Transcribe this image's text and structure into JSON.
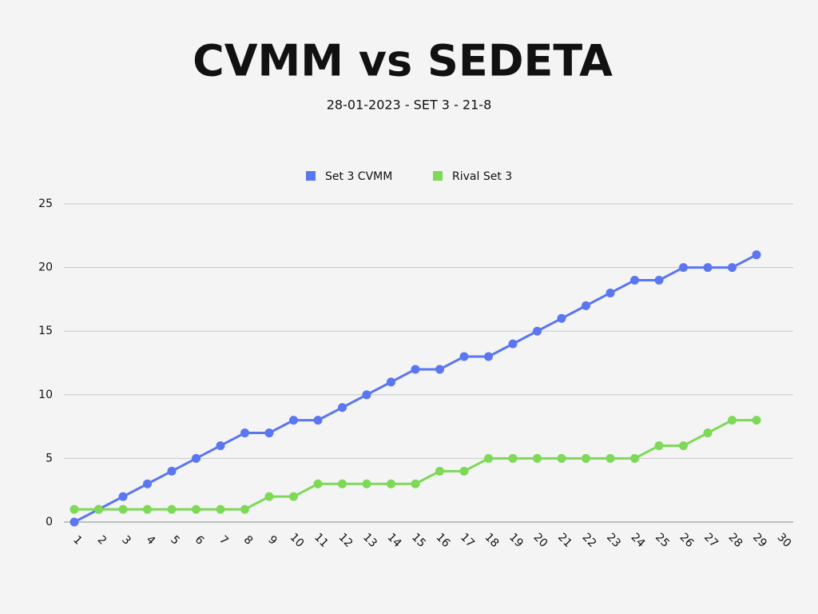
{
  "chart_data": {
    "type": "line",
    "title": "CVMM vs SEDETA",
    "subtitle": "28-01-2023 - SET 3 - 21-8",
    "categories": [
      "1",
      "2",
      "3",
      "4",
      "5",
      "6",
      "7",
      "8",
      "9",
      "10",
      "11",
      "12",
      "13",
      "14",
      "15",
      "16",
      "17",
      "18",
      "19",
      "20",
      "21",
      "22",
      "23",
      "24",
      "25",
      "26",
      "27",
      "28",
      "29",
      "30"
    ],
    "series": [
      {
        "name": "Set 3 CVMM",
        "color": "#5a76f0",
        "values": [
          0,
          1,
          2,
          3,
          4,
          5,
          6,
          7,
          7,
          8,
          8,
          9,
          10,
          11,
          12,
          12,
          13,
          13,
          14,
          15,
          16,
          17,
          18,
          19,
          19,
          20,
          20,
          20,
          21,
          null
        ]
      },
      {
        "name": "Rival Set 3",
        "color": "#7ed957",
        "values": [
          1,
          1,
          1,
          1,
          1,
          1,
          1,
          1,
          2,
          2,
          3,
          3,
          3,
          3,
          3,
          4,
          4,
          5,
          5,
          5,
          5,
          5,
          5,
          5,
          6,
          6,
          7,
          8,
          8,
          null
        ]
      }
    ],
    "ylim": [
      0,
      25
    ],
    "yticks": [
      0,
      5,
      10,
      15,
      20,
      25
    ],
    "grid": true,
    "legend": "top"
  }
}
